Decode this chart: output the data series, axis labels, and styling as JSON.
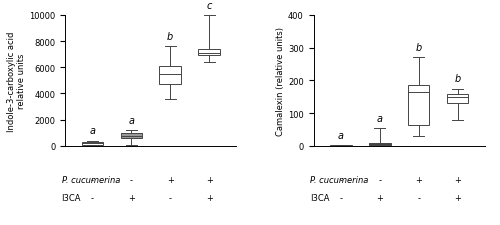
{
  "left": {
    "ylabel": "Indole-3-carboxylic acid\nrelative units",
    "ylim": [
      0,
      10000
    ],
    "yticks": [
      0,
      2000,
      4000,
      6000,
      8000,
      10000
    ],
    "boxes": [
      {
        "whislo": 50,
        "q1": 100,
        "med": 220,
        "q3": 320,
        "whishi": 400,
        "label": "a",
        "color": "white"
      },
      {
        "whislo": 50,
        "q1": 580,
        "med": 760,
        "q3": 980,
        "whishi": 1200,
        "label": "a",
        "color": "#999999"
      },
      {
        "whislo": 3600,
        "q1": 4700,
        "med": 5500,
        "q3": 6100,
        "whishi": 7600,
        "label": "b",
        "color": "white"
      },
      {
        "whislo": 6400,
        "q1": 6900,
        "med": 7100,
        "q3": 7400,
        "whishi": 10000,
        "label": "c",
        "color": "white"
      }
    ],
    "xticklabels_pc": [
      "-",
      "-",
      "+",
      "+"
    ],
    "xticklabels_i3ca": [
      "-",
      "+",
      "-",
      "+"
    ]
  },
  "right": {
    "ylabel": "Camalexin (relative units)",
    "ylim": [
      0,
      400
    ],
    "yticks": [
      0,
      100,
      200,
      300,
      400
    ],
    "boxes": [
      {
        "whislo": 0,
        "q1": 0,
        "med": 0,
        "q3": 2,
        "whishi": 3,
        "label": "a",
        "color": "white"
      },
      {
        "whislo": 0,
        "q1": 2,
        "med": 5,
        "q3": 10,
        "whishi": 55,
        "label": "a",
        "color": "#606060"
      },
      {
        "whislo": 30,
        "q1": 65,
        "med": 165,
        "q3": 185,
        "whishi": 270,
        "label": "b",
        "color": "white"
      },
      {
        "whislo": 80,
        "q1": 130,
        "med": 148,
        "q3": 158,
        "whishi": 175,
        "label": "b",
        "color": "white"
      }
    ],
    "xticklabels_pc": [
      "-",
      "-",
      "+",
      "+"
    ],
    "xticklabels_i3ca": [
      "-",
      "+",
      "-",
      "+"
    ]
  },
  "label_fontsize": 6,
  "sig_fontsize": 7,
  "tick_fontsize": 6,
  "box_width": 0.55,
  "background_color": "#ffffff"
}
